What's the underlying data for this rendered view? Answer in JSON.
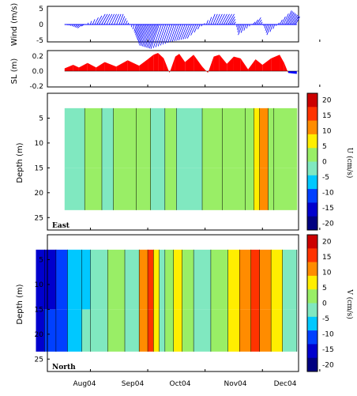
{
  "chart_data": [
    {
      "type": "line",
      "panel": "wind",
      "ylabel": "Wind (m/s)",
      "ylim": [
        -5,
        5
      ],
      "yticks": [
        "5",
        "0",
        "-5"
      ],
      "series": [
        {
          "color": "#0000ff",
          "x_month": [
            0.55,
            0.85,
            1.15,
            1.5,
            1.8,
            2.0,
            2.2,
            2.5,
            2.8,
            3.1,
            3.4,
            3.65,
            3.9,
            4.15,
            4.4,
            4.6
          ],
          "u": [
            1,
            -2,
            3,
            2,
            -1,
            -4,
            -4,
            -3,
            -3,
            2,
            3,
            -2,
            2,
            -2,
            3,
            2
          ],
          "v": [
            0,
            -1,
            3,
            3,
            -2,
            -6,
            -7,
            -5,
            -4,
            3,
            3,
            -3,
            2,
            -3,
            4,
            2
          ]
        }
      ]
    },
    {
      "type": "area",
      "panel": "sea-level",
      "ylabel": "SL (m)",
      "ylim": [
        -0.2,
        0.2
      ],
      "yticks": [
        "0.2",
        "0.0",
        "-0.2"
      ],
      "series": [
        {
          "color": "#ff0000",
          "negative_color": "#0000ff",
          "x_month": [
            0.55,
            0.7,
            0.8,
            0.95,
            1.1,
            1.25,
            1.45,
            1.65,
            1.85,
            2.0,
            2.1,
            2.18,
            2.28,
            2.38,
            2.48,
            2.55,
            2.65,
            2.8,
            2.95,
            3.05,
            3.15,
            3.25,
            3.38,
            3.5,
            3.62,
            3.75,
            3.88,
            4.0,
            4.15,
            4.3,
            4.38,
            4.45,
            4.6
          ],
          "values": [
            0.03,
            0.07,
            0.04,
            0.09,
            0.04,
            0.1,
            0.05,
            0.12,
            0.06,
            0.13,
            0.18,
            0.2,
            0.14,
            -0.02,
            0.16,
            0.19,
            0.1,
            0.18,
            0.05,
            -0.02,
            0.16,
            0.18,
            0.08,
            0.16,
            0.14,
            0.02,
            0.13,
            0.07,
            0.14,
            0.18,
            0.09,
            -0.02,
            -0.03
          ]
        }
      ]
    },
    {
      "type": "heatmap",
      "panel": "east",
      "tag": "East",
      "ylabel": "Depth (m)",
      "yticks": [
        "5",
        "10",
        "15",
        "20",
        "25"
      ],
      "colorbar_label": "U (cm/s)",
      "depth_range": [
        3,
        23.5
      ],
      "x_bands_month": [
        0.55,
        0.9,
        1.2,
        1.4,
        1.8,
        2.05,
        2.3,
        2.5,
        2.95,
        3.3,
        3.7,
        3.85,
        3.95,
        4.1,
        4.2,
        4.6
      ],
      "u_cm_s": [
        -3,
        1,
        -3,
        3,
        2,
        -1,
        2,
        -2,
        3,
        3,
        4,
        6,
        10,
        3,
        1
      ],
      "u_bottom_band_cm_s": [
        -5,
        1,
        -4,
        3,
        2,
        -2,
        2,
        -3,
        3,
        3,
        4,
        6,
        10,
        2,
        1
      ]
    },
    {
      "type": "heatmap",
      "panel": "north",
      "tag": "North",
      "ylabel": "Depth (m)",
      "yticks": [
        "5",
        "10",
        "15",
        "20",
        "25"
      ],
      "colorbar_label": "V (cm/s)",
      "depth_range": [
        3,
        23.5
      ],
      "x_bands_month": [
        0.05,
        0.2,
        0.4,
        0.6,
        0.85,
        1.0,
        1.3,
        1.6,
        1.85,
        2.0,
        2.1,
        2.2,
        2.3,
        2.45,
        2.6,
        2.8,
        3.1,
        3.4,
        3.6,
        3.8,
        3.95,
        4.15,
        4.35,
        4.6
      ],
      "v_cm_s": [
        -18,
        -15,
        -12,
        -8,
        -5,
        -2,
        1,
        -3,
        13,
        19,
        8,
        -4,
        0,
        9,
        1,
        -2,
        1,
        6,
        11,
        17,
        10,
        5,
        -2,
        1
      ],
      "v_shallow_cm_s": [
        -19,
        -16,
        -13,
        -9,
        -6,
        -3,
        1,
        -3,
        12,
        18,
        8,
        -4,
        0,
        9,
        1,
        -2,
        1,
        6,
        12,
        18,
        11,
        6,
        -2,
        1
      ]
    }
  ],
  "x_axis": {
    "ticks": [
      "Aug04",
      "Sep04",
      "Oct04",
      "Nov04",
      "Dec04"
    ],
    "month_positions": [
      1,
      2,
      3,
      4,
      5
    ]
  },
  "colorbar": {
    "ticks": [
      "20",
      "15",
      "10",
      "5",
      "0",
      "-5",
      "-10",
      "-15",
      "-20"
    ],
    "colors": [
      "#000080",
      "#0000cd",
      "#0040ff",
      "#00c8ff",
      "#80e8c0",
      "#99ee66",
      "#ffee00",
      "#ff8c00",
      "#ff3300",
      "#cc0000"
    ],
    "bounds": [
      -20,
      -15,
      -10,
      -5,
      0,
      5,
      10,
      15,
      20
    ]
  }
}
